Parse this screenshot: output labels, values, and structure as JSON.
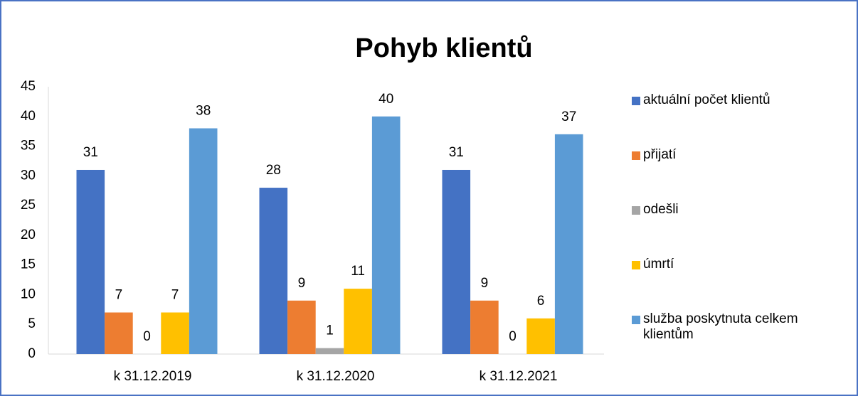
{
  "chart_data": {
    "type": "bar",
    "title": "Pohyb klientů",
    "categories": [
      "k 31.12.2019",
      "k 31.12.2020",
      "k 31.12.2021"
    ],
    "series": [
      {
        "name": "aktuální počet klientů",
        "color": "#4472c4",
        "values": [
          31,
          28,
          31
        ]
      },
      {
        "name": "přijatí",
        "color": "#ed7d31",
        "values": [
          7,
          9,
          9
        ]
      },
      {
        "name": "odešli",
        "color": "#a5a5a5",
        "values": [
          0,
          1,
          0
        ]
      },
      {
        "name": "úmrtí",
        "color": "#ffc000",
        "values": [
          7,
          11,
          6
        ]
      },
      {
        "name": "služba poskytnuta celkem klientům",
        "color": "#5b9bd5",
        "values": [
          38,
          40,
          37
        ]
      }
    ],
    "ylim": [
      0,
      45
    ],
    "yticks": [
      0,
      5,
      10,
      15,
      20,
      25,
      30,
      35,
      40,
      45
    ],
    "grid": false,
    "legend": "right"
  }
}
